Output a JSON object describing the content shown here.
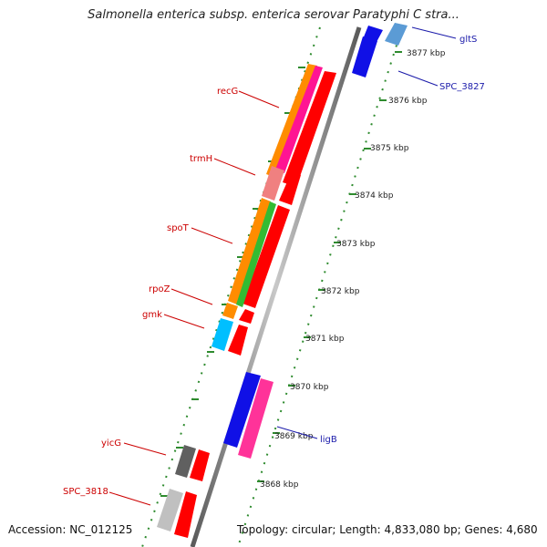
{
  "title": "Salmonella enterica subsp. enterica serovar Paratyphi C stra...",
  "footer": {
    "accession": "Accession: NC_012125",
    "summary": "Topology: circular; Length: 4,833,080 bp; Genes: 4,680"
  },
  "colors": {
    "backbone": "#8c8c8c",
    "tick": "#2e8b2e",
    "label_reverse": "#cc0000",
    "label_forward": "#1a1aaa"
  },
  "kbp_labels": [
    "3877 kbp",
    "3876 kbp",
    "3875 kbp",
    "3874 kbp",
    "3873 kbp",
    "3872 kbp",
    "3871 kbp",
    "3870 kbp",
    "3869 kbp",
    "3868 kbp"
  ],
  "gene_labels": {
    "gltS": "gltS",
    "spc3827": "SPC_3827",
    "recG": "recG",
    "trmH": "trmH",
    "spoT": "spoT",
    "rpoZ": "rpoZ",
    "gmk": "gmk",
    "ligB": "ligB",
    "yicG": "yicG",
    "spc3818": "SPC_3818"
  }
}
